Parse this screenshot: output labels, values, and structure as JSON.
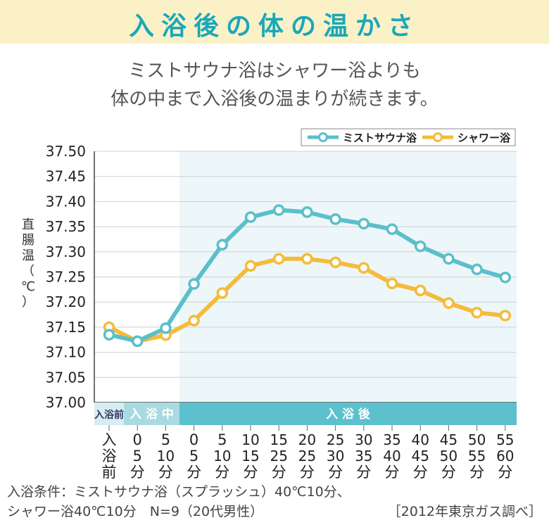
{
  "header": {
    "title": "入浴後の体の温かさ",
    "subtitle_line1": "ミストサウナ浴はシャワー浴よりも",
    "subtitle_line2": "体の中まで入浴後の温まりが続きます。"
  },
  "chart_data": {
    "type": "line",
    "ylabel": "直腸温（℃）",
    "ylim": [
      37.0,
      37.5
    ],
    "yticks": [
      "37.50",
      "37.45",
      "37.40",
      "37.35",
      "37.30",
      "37.25",
      "37.20",
      "37.15",
      "37.10",
      "37.05",
      "37.00"
    ],
    "categories": [
      "入浴前",
      "0-5分",
      "5-10分",
      "0-5分",
      "5-10分",
      "10-15分",
      "15-25分",
      "20-25分",
      "25-30分",
      "30-35分",
      "35-40分",
      "40-45分",
      "45-50分",
      "50-55分",
      "55-60分"
    ],
    "xtick_lines": [
      [
        "入",
        "浴",
        "前"
      ],
      [
        "0",
        "5",
        "分"
      ],
      [
        "5",
        "10",
        "分"
      ],
      [
        "0",
        "5",
        "分"
      ],
      [
        "5",
        "10",
        "分"
      ],
      [
        "10",
        "15",
        "分"
      ],
      [
        "15",
        "25",
        "分"
      ],
      [
        "20",
        "25",
        "分"
      ],
      [
        "25",
        "30",
        "分"
      ],
      [
        "30",
        "35",
        "分"
      ],
      [
        "35",
        "40",
        "分"
      ],
      [
        "40",
        "45",
        "分"
      ],
      [
        "45",
        "50",
        "分"
      ],
      [
        "50",
        "55",
        "分"
      ],
      [
        "55",
        "60",
        "分"
      ]
    ],
    "phases": [
      {
        "label": "入浴前",
        "color": "#d6eef1"
      },
      {
        "label": "入 浴 中",
        "color": "#a8dbe1"
      },
      {
        "label": "入 浴 後",
        "color": "#5cc1cd"
      }
    ],
    "series": [
      {
        "name": "ミストサウナ浴",
        "color": "#5bbfca",
        "values": [
          37.135,
          37.122,
          37.148,
          37.236,
          37.314,
          37.369,
          37.383,
          37.379,
          37.365,
          37.356,
          37.345,
          37.311,
          37.286,
          37.265,
          37.249
        ]
      },
      {
        "name": "シャワー浴",
        "color": "#f5bb3a",
        "values": [
          37.15,
          37.122,
          37.134,
          37.163,
          37.218,
          37.272,
          37.286,
          37.286,
          37.279,
          37.268,
          37.237,
          37.223,
          37.198,
          37.179,
          37.173
        ]
      }
    ],
    "legend_position": "top-right",
    "grid": true
  },
  "footer": {
    "condition_line1": "入浴条件：ミストサウナ浴（スプラッシュ）40℃10分、",
    "condition_line2": "シャワー浴40℃10分　N=9（20代男性）",
    "source": "［2012年東京ガス調べ］"
  }
}
